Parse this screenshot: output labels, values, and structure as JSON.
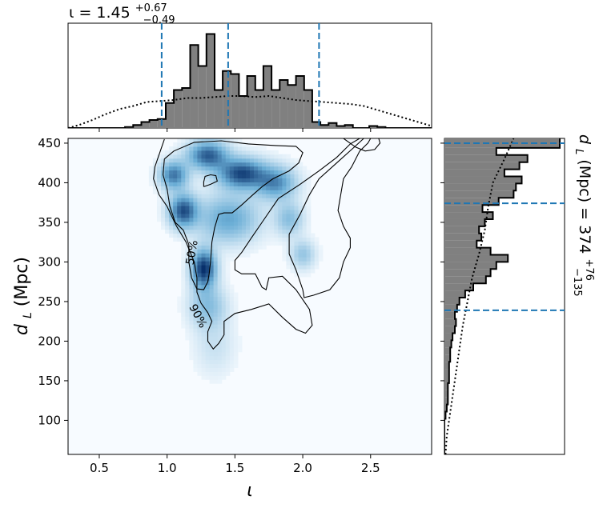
{
  "colors": {
    "hist_fill": "#808080",
    "hist_edge": "#000000",
    "quantile_line": "#1f77b4",
    "density_light": "#f7fbff",
    "density_dark": "#08306b"
  },
  "chart_data": [
    {
      "id": "joint",
      "type": "heatmap",
      "title": "",
      "xlabel": "ι",
      "ylabel": "d",
      "ylabel_sub": "L",
      "ylabel_unit": " (Mpc)",
      "xlim": [
        0.27,
        2.95
      ],
      "ylim": [
        57,
        456
      ],
      "xticks": [
        0.5,
        1.0,
        1.5,
        2.0,
        2.5
      ],
      "xtick_labels": [
        "0.5",
        "1.0",
        "1.5",
        "2.0",
        "2.5"
      ],
      "yticks": [
        100,
        150,
        200,
        250,
        300,
        350,
        400,
        450
      ],
      "ytick_labels": [
        "100",
        "150",
        "200",
        "250",
        "300",
        "350",
        "400",
        "450"
      ],
      "colormap": "Blues",
      "density_peaks": [
        {
          "x": 1.27,
          "y": 292,
          "weight": 1.0,
          "sx": 0.06,
          "sy": 16
        },
        {
          "x": 1.12,
          "y": 365,
          "weight": 0.85,
          "sx": 0.07,
          "sy": 14
        },
        {
          "x": 1.55,
          "y": 412,
          "weight": 0.9,
          "sx": 0.12,
          "sy": 13
        },
        {
          "x": 1.3,
          "y": 435,
          "weight": 0.8,
          "sx": 0.1,
          "sy": 12
        },
        {
          "x": 1.05,
          "y": 410,
          "weight": 0.7,
          "sx": 0.07,
          "sy": 12
        },
        {
          "x": 1.8,
          "y": 400,
          "weight": 0.6,
          "sx": 0.1,
          "sy": 14
        },
        {
          "x": 1.45,
          "y": 355,
          "weight": 0.5,
          "sx": 0.15,
          "sy": 20
        },
        {
          "x": 1.3,
          "y": 245,
          "weight": 0.35,
          "sx": 0.09,
          "sy": 18
        },
        {
          "x": 2.0,
          "y": 310,
          "weight": 0.3,
          "sx": 0.06,
          "sy": 12
        },
        {
          "x": 1.9,
          "y": 355,
          "weight": 0.35,
          "sx": 0.07,
          "sy": 14
        },
        {
          "x": 1.35,
          "y": 195,
          "weight": 0.12,
          "sx": 0.1,
          "sy": 25
        }
      ],
      "contours": [
        {
          "label": "50%",
          "label_at": {
            "x": 1.18,
            "y": 312
          },
          "paths": [
            [
              [
                0.98,
                430
              ],
              [
                1.05,
                440
              ],
              [
                1.2,
                451
              ],
              [
                1.4,
                453
              ],
              [
                1.6,
                449
              ],
              [
                1.8,
                447
              ],
              [
                1.95,
                446
              ],
              [
                2.0,
                438
              ],
              [
                1.97,
                425
              ],
              [
                1.9,
                415
              ],
              [
                1.78,
                405
              ],
              [
                1.7,
                395
              ],
              [
                1.62,
                383
              ],
              [
                1.55,
                372
              ],
              [
                1.48,
                362
              ],
              [
                1.42,
                362
              ],
              [
                1.38,
                360
              ],
              [
                1.35,
                343
              ],
              [
                1.33,
                325
              ],
              [
                1.32,
                300
              ],
              [
                1.31,
                285
              ],
              [
                1.3,
                275
              ],
              [
                1.27,
                265
              ],
              [
                1.22,
                266
              ],
              [
                1.18,
                280
              ],
              [
                1.16,
                300
              ],
              [
                1.16,
                322
              ],
              [
                1.12,
                340
              ],
              [
                1.06,
                350
              ],
              [
                1.02,
                370
              ],
              [
                1.0,
                392
              ],
              [
                0.97,
                410
              ],
              [
                0.98,
                430
              ]
            ],
            [
              [
                1.27,
                395
              ],
              [
                1.32,
                398
              ],
              [
                1.37,
                402
              ],
              [
                1.36,
                409
              ],
              [
                1.32,
                410
              ],
              [
                1.28,
                408
              ],
              [
                1.27,
                401
              ],
              [
                1.27,
                395
              ]
            ]
          ]
        },
        {
          "label": "90%",
          "label_at": {
            "x": 1.23,
            "y": 232
          },
          "paths": [
            [
              [
                0.98,
                455
              ],
              [
                0.95,
                440
              ],
              [
                0.91,
                420
              ],
              [
                0.9,
                405
              ],
              [
                0.94,
                385
              ],
              [
                1.0,
                370
              ],
              [
                1.07,
                345
              ],
              [
                1.14,
                325
              ],
              [
                1.2,
                300
              ],
              [
                1.22,
                280
              ],
              [
                1.22,
                262
              ],
              [
                1.25,
                248
              ],
              [
                1.3,
                236
              ],
              [
                1.33,
                225
              ],
              [
                1.3,
                212
              ],
              [
                1.3,
                200
              ],
              [
                1.34,
                190
              ],
              [
                1.38,
                197
              ],
              [
                1.42,
                208
              ],
              [
                1.42,
                225
              ],
              [
                1.5,
                235
              ],
              [
                1.62,
                240
              ],
              [
                1.75,
                247
              ],
              [
                1.85,
                230
              ],
              [
                1.95,
                215
              ],
              [
                2.02,
                210
              ],
              [
                2.07,
                220
              ],
              [
                2.05,
                240
              ],
              [
                1.95,
                265
              ],
              [
                1.85,
                282
              ],
              [
                1.75,
                280
              ],
              [
                1.73,
                265
              ],
              [
                1.7,
                268
              ],
              [
                1.65,
                285
              ],
              [
                1.55,
                285
              ],
              [
                1.5,
                290
              ],
              [
                1.5,
                302
              ],
              [
                1.55,
                312
              ],
              [
                1.62,
                330
              ],
              [
                1.72,
                355
              ],
              [
                1.82,
                380
              ],
              [
                1.98,
                398
              ],
              [
                2.12,
                415
              ],
              [
                2.25,
                432
              ],
              [
                2.35,
                449
              ],
              [
                2.42,
                456
              ]
            ],
            [
              [
                2.5,
                456
              ],
              [
                2.48,
                450
              ],
              [
                2.42,
                440
              ],
              [
                2.36,
                420
              ],
              [
                2.3,
                405
              ],
              [
                2.28,
                385
              ],
              [
                2.26,
                365
              ],
              [
                2.3,
                345
              ],
              [
                2.35,
                330
              ],
              [
                2.35,
                318
              ],
              [
                2.3,
                300
              ],
              [
                2.27,
                280
              ],
              [
                2.2,
                265
              ],
              [
                2.08,
                258
              ],
              [
                2.01,
                255
              ],
              [
                2.0,
                265
              ],
              [
                1.95,
                290
              ],
              [
                1.9,
                310
              ],
              [
                1.9,
                335
              ],
              [
                1.98,
                360
              ],
              [
                2.05,
                385
              ],
              [
                2.12,
                405
              ],
              [
                2.25,
                425
              ],
              [
                2.38,
                445
              ],
              [
                2.45,
                456
              ]
            ],
            [
              [
                2.3,
                456
              ],
              [
                2.39,
                445
              ],
              [
                2.46,
                440
              ],
              [
                2.53,
                442
              ],
              [
                2.57,
                450
              ],
              [
                2.56,
                456
              ]
            ]
          ]
        }
      ]
    },
    {
      "id": "marginal_iota",
      "type": "bar",
      "title_prefix": "ι = 1.45",
      "title_sup": "+0.67",
      "title_sub": "−0.49",
      "xlim": [
        0.27,
        2.95
      ],
      "bin_edges": [
        0.27,
        0.33,
        0.39,
        0.45,
        0.51,
        0.57,
        0.63,
        0.69,
        0.75,
        0.81,
        0.87,
        0.93,
        0.99,
        1.05,
        1.11,
        1.17,
        1.23,
        1.29,
        1.35,
        1.41,
        1.47,
        1.53,
        1.59,
        1.65,
        1.71,
        1.77,
        1.83,
        1.89,
        1.95,
        2.01,
        2.07,
        2.13,
        2.19,
        2.25,
        2.31,
        2.37,
        2.43,
        2.49,
        2.55,
        2.61,
        2.67,
        2.73,
        2.79,
        2.85,
        2.95
      ],
      "posterior_counts": [
        0,
        0,
        0,
        0,
        0,
        0,
        0,
        0.01,
        0.03,
        0.06,
        0.08,
        0.09,
        0.25,
        0.38,
        0.4,
        0.83,
        0.62,
        0.94,
        0.38,
        0.57,
        0.54,
        0.32,
        0.52,
        0.38,
        0.62,
        0.38,
        0.48,
        0.43,
        0.52,
        0.38,
        0.06,
        0.03,
        0.05,
        0.02,
        0.03,
        0,
        0,
        0.02,
        0.01,
        0,
        0,
        0,
        0,
        0
      ],
      "prior_curve": [
        [
          0.27,
          0.0
        ],
        [
          0.35,
          0.03
        ],
        [
          0.45,
          0.08
        ],
        [
          0.55,
          0.14
        ],
        [
          0.65,
          0.19
        ],
        [
          0.75,
          0.22
        ],
        [
          0.85,
          0.26
        ],
        [
          0.95,
          0.27
        ],
        [
          1.05,
          0.28
        ],
        [
          1.15,
          0.3
        ],
        [
          1.25,
          0.3
        ],
        [
          1.35,
          0.31
        ],
        [
          1.45,
          0.32
        ],
        [
          1.55,
          0.32
        ],
        [
          1.65,
          0.31
        ],
        [
          1.75,
          0.32
        ],
        [
          1.85,
          0.3
        ],
        [
          1.95,
          0.28
        ],
        [
          2.05,
          0.27
        ],
        [
          2.15,
          0.26
        ],
        [
          2.25,
          0.25
        ],
        [
          2.35,
          0.24
        ],
        [
          2.45,
          0.22
        ],
        [
          2.55,
          0.18
        ],
        [
          2.65,
          0.14
        ],
        [
          2.75,
          0.1
        ],
        [
          2.85,
          0.06
        ],
        [
          2.95,
          0.02
        ]
      ],
      "quantiles": [
        0.96,
        1.45,
        2.12
      ],
      "ymax": 1.0
    },
    {
      "id": "marginal_dL",
      "type": "bar",
      "orientation": "horizontal",
      "title_prefix": "d",
      "title_sub_L": "L",
      "title_mid": " (Mpc) = 374",
      "title_sup": "+76",
      "title_sub": "−135",
      "ylim": [
        57,
        456
      ],
      "bin_edges": [
        57,
        66,
        75,
        84,
        93,
        102,
        111,
        120,
        129,
        138,
        147,
        156,
        165,
        174,
        183,
        192,
        201,
        210,
        219,
        228,
        237,
        246,
        255,
        264,
        273,
        282,
        291,
        300,
        309,
        318,
        327,
        336,
        345,
        354,
        363,
        372,
        381,
        390,
        399,
        408,
        417,
        426,
        435,
        444,
        456
      ],
      "posterior_counts": [
        0,
        0,
        0,
        0,
        0,
        0.01,
        0.02,
        0.03,
        0.03,
        0.03,
        0.04,
        0.04,
        0.04,
        0.05,
        0.05,
        0.06,
        0.07,
        0.09,
        0.1,
        0.09,
        0.11,
        0.13,
        0.18,
        0.25,
        0.36,
        0.4,
        0.45,
        0.55,
        0.4,
        0.28,
        0.32,
        0.3,
        0.35,
        0.42,
        0.33,
        0.47,
        0.6,
        0.62,
        0.67,
        0.52,
        0.65,
        0.72,
        0.45,
        1.0
      ],
      "prior_curve": [
        [
          57,
          0.01
        ],
        [
          80,
          0.02
        ],
        [
          100,
          0.04
        ],
        [
          130,
          0.07
        ],
        [
          160,
          0.1
        ],
        [
          190,
          0.13
        ],
        [
          220,
          0.16
        ],
        [
          250,
          0.2
        ],
        [
          280,
          0.24
        ],
        [
          310,
          0.3
        ],
        [
          340,
          0.35
        ],
        [
          370,
          0.38
        ],
        [
          400,
          0.42
        ],
        [
          430,
          0.52
        ],
        [
          456,
          0.6
        ]
      ],
      "quantiles": [
        239,
        374,
        450
      ],
      "xmax": 1.0
    }
  ]
}
